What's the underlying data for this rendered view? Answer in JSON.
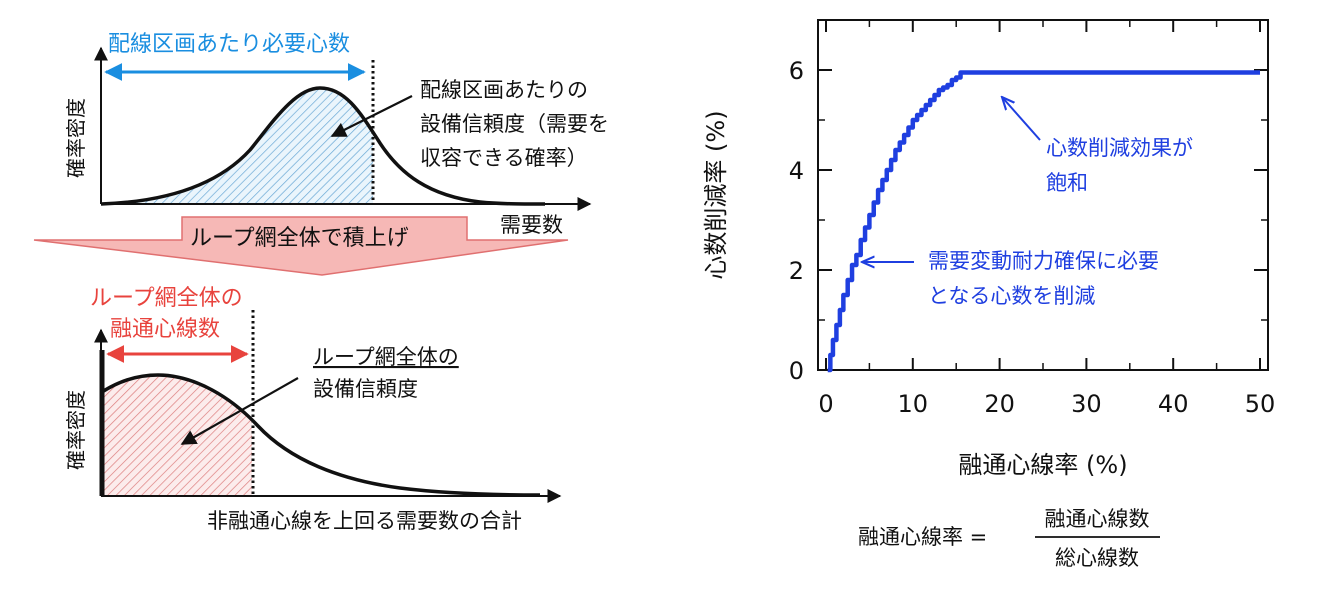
{
  "left_top": {
    "title": "配線区画あたり必要心数",
    "ylabel": "確率密度",
    "xlabel": "需要数",
    "annotation_lines": [
      "配線区画あたりの",
      "設備信頼度（需要を",
      "収容できる確率）"
    ]
  },
  "transition": {
    "label": "ループ網全体で積上げ"
  },
  "left_bottom": {
    "title_lines": [
      "ループ網全体の",
      "融通心線数"
    ],
    "ylabel": "確率密度",
    "xlabel": "非融通心線を上回る需要数の合計",
    "annotation_lines": [
      "ループ網全体の",
      "設備信頼度"
    ]
  },
  "chart_data": {
    "type": "line",
    "xlabel": "融通心線率 (%)",
    "ylabel": "心数削減率 (%)",
    "xlim": [
      0,
      50
    ],
    "ylim": [
      0,
      7
    ],
    "x_ticks": [
      "0",
      "10",
      "20",
      "30",
      "40",
      "50"
    ],
    "y_ticks": [
      "0",
      "2",
      "4",
      "6"
    ],
    "series": [
      {
        "color": "#1f3fe0",
        "x": [
          0.2,
          0.5,
          0.8,
          1.2,
          1.6,
          2.0,
          2.5,
          3.0,
          3.5,
          4.0,
          4.5,
          5.0,
          5.5,
          6.0,
          6.5,
          7.0,
          7.5,
          8.0,
          8.5,
          9.0,
          9.5,
          10.0,
          10.5,
          11.0,
          11.5,
          12.0,
          12.5,
          13.0,
          13.5,
          14.0,
          14.5,
          15.0,
          15.5,
          20,
          30,
          40,
          50
        ],
        "y": [
          0.0,
          0.3,
          0.6,
          0.9,
          1.2,
          1.5,
          1.8,
          2.1,
          2.3,
          2.6,
          2.85,
          3.1,
          3.35,
          3.6,
          3.8,
          4.0,
          4.2,
          4.4,
          4.55,
          4.7,
          4.85,
          5.0,
          5.1,
          5.2,
          5.3,
          5.4,
          5.5,
          5.6,
          5.65,
          5.7,
          5.8,
          5.85,
          5.95,
          5.95,
          5.95,
          5.95,
          5.95
        ]
      }
    ],
    "annotations": [
      {
        "lines": [
          "心数削減効果が",
          "飽和"
        ],
        "color": "#1f3fe0"
      },
      {
        "lines": [
          "需要変動耐力確保に必要",
          "となる心数を削減"
        ],
        "color": "#1f3fe0"
      }
    ]
  },
  "formula": {
    "lhs": "融通心線率 =",
    "numerator": "融通心線数",
    "denominator": "総心線数"
  },
  "colors": {
    "blue_accent": "#1a8ee0",
    "red_accent": "#e8433d",
    "blue_hatch": "#7fb6e0",
    "red_hatch": "#e08080",
    "arrow_fill": "#f6b8b6",
    "arrow_stroke": "#e07070",
    "plot_line": "#1f3fe0"
  }
}
